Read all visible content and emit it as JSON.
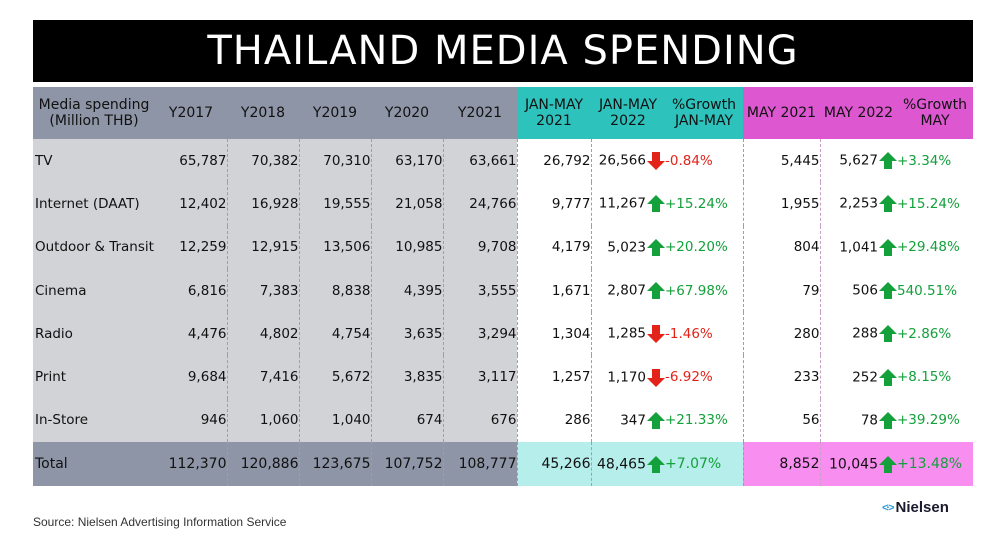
{
  "title": "THAILAND MEDIA SPENDING",
  "headers": {
    "media": [
      "Media spending",
      "(Million THB)"
    ],
    "y2017": "Y2017",
    "y2018": "Y2018",
    "y2019": "Y2019",
    "y2020": "Y2020",
    "y2021": "Y2021",
    "janmay2021": [
      "JAN-MAY",
      "2021"
    ],
    "janmay2022": [
      "JAN-MAY",
      "2022"
    ],
    "growth_janmay": [
      "%Growth",
      "JAN-MAY"
    ],
    "may2021": "MAY 2021",
    "may2022": "MAY 2022",
    "growth_may": [
      "%Growth",
      "MAY"
    ]
  },
  "colors": {
    "up": "#14a03b",
    "down": "#e32219",
    "gray_header": "#8e95a6",
    "teal_header": "#2ec2bd",
    "magenta_header": "#dc57d0"
  },
  "chart_data": {
    "type": "table",
    "title": "THAILAND MEDIA SPENDING",
    "columns": [
      "Media spending (Million THB)",
      "Y2017",
      "Y2018",
      "Y2019",
      "Y2020",
      "Y2021",
      "JAN-MAY 2021",
      "JAN-MAY 2022",
      "%Growth JAN-MAY",
      "MAY 2021",
      "MAY 2022",
      "%Growth MAY"
    ],
    "rows": [
      {
        "name": "TV",
        "y2017": "65,787",
        "y2018": "70,382",
        "y2019": "70,310",
        "y2020": "63,170",
        "y2021": "63,661",
        "jm2021": "26,792",
        "jm2022": "26,566",
        "g_jm": "-0.84%",
        "g_jm_dir": "down",
        "m2021": "5,445",
        "m2022": "5,627",
        "g_m": "+3.34%",
        "g_m_dir": "up"
      },
      {
        "name": "Internet (DAAT)",
        "y2017": "12,402",
        "y2018": "16,928",
        "y2019": "19,555",
        "y2020": "21,058",
        "y2021": "24,766",
        "jm2021": "9,777",
        "jm2022": "11,267",
        "g_jm": "+15.24%",
        "g_jm_dir": "up",
        "m2021": "1,955",
        "m2022": "2,253",
        "g_m": "+15.24%",
        "g_m_dir": "up"
      },
      {
        "name": "Outdoor & Transit",
        "y2017": "12,259",
        "y2018": "12,915",
        "y2019": "13,506",
        "y2020": "10,985",
        "y2021": "9,708",
        "jm2021": "4,179",
        "jm2022": "5,023",
        "g_jm": "+20.20%",
        "g_jm_dir": "up",
        "m2021": "804",
        "m2022": "1,041",
        "g_m": "+29.48%",
        "g_m_dir": "up"
      },
      {
        "name": "Cinema",
        "y2017": "6,816",
        "y2018": "7,383",
        "y2019": "8,838",
        "y2020": "4,395",
        "y2021": "3,555",
        "jm2021": "1,671",
        "jm2022": "2,807",
        "g_jm": "+67.98%",
        "g_jm_dir": "up",
        "m2021": "79",
        "m2022": "506",
        "g_m": "540.51%",
        "g_m_dir": "up"
      },
      {
        "name": "Radio",
        "y2017": "4,476",
        "y2018": "4,802",
        "y2019": "4,754",
        "y2020": "3,635",
        "y2021": "3,294",
        "jm2021": "1,304",
        "jm2022": "1,285",
        "g_jm": "-1.46%",
        "g_jm_dir": "down",
        "m2021": "280",
        "m2022": "288",
        "g_m": "+2.86%",
        "g_m_dir": "up"
      },
      {
        "name": "Print",
        "y2017": "9,684",
        "y2018": "7,416",
        "y2019": "5,672",
        "y2020": "3,835",
        "y2021": "3,117",
        "jm2021": "1,257",
        "jm2022": "1,170",
        "g_jm": "-6.92%",
        "g_jm_dir": "down",
        "m2021": "233",
        "m2022": "252",
        "g_m": "+8.15%",
        "g_m_dir": "up"
      },
      {
        "name": "In-Store",
        "y2017": "946",
        "y2018": "1,060",
        "y2019": "1,040",
        "y2020": "674",
        "y2021": "676",
        "jm2021": "286",
        "jm2022": "347",
        "g_jm": "+21.33%",
        "g_jm_dir": "up",
        "m2021": "56",
        "m2022": "78",
        "g_m": "+39.29%",
        "g_m_dir": "up"
      }
    ],
    "total": {
      "name": "Total",
      "y2017": "112,370",
      "y2018": "120,886",
      "y2019": "123,675",
      "y2020": "107,752",
      "y2021": "108,777",
      "jm2021": "45,266",
      "jm2022": "48,465",
      "g_jm": "+7.07%",
      "g_jm_dir": "up",
      "m2021": "8,852",
      "m2022": "10,045",
      "g_m": "+13.48%",
      "g_m_dir": "up"
    }
  },
  "source": "Source: Nielsen Advertising Information Service",
  "logo_text": "Nielsen"
}
